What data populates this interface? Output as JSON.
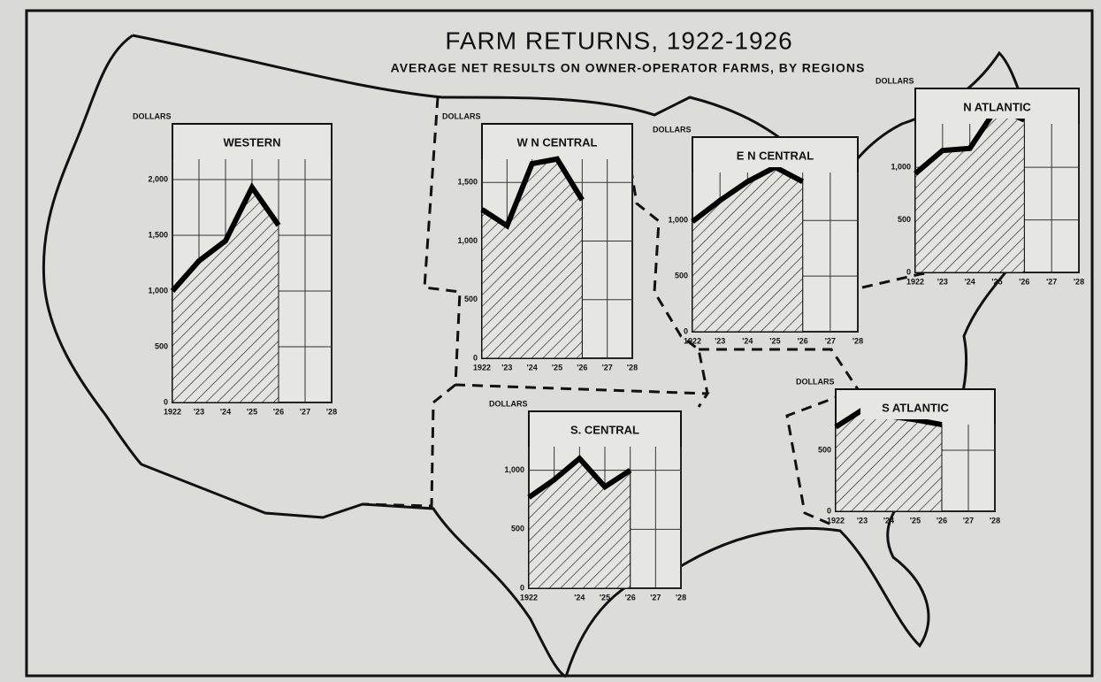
{
  "title": "FARM RETURNS, 1922-1926",
  "subtitle": "AVERAGE NET RESULTS ON OWNER-OPERATOR FARMS, BY REGIONS",
  "chart_data": [
    {
      "type": "area",
      "title": "WESTERN",
      "ylabel": "DOLLARS",
      "categories": [
        "1922",
        "'23",
        "'24",
        "'25",
        "'26",
        "'27",
        "'28"
      ],
      "values": [
        1000,
        1270,
        1450,
        1930,
        1590,
        null,
        null
      ],
      "ylim": [
        0,
        2500
      ],
      "yticks": [
        0,
        500,
        {
          "value": 1000,
          "label": "1,000"
        },
        {
          "value": 1500,
          "label": "1,500"
        },
        {
          "value": 2000,
          "label": "2,000"
        }
      ]
    },
    {
      "type": "area",
      "title": "W N CENTRAL",
      "ylabel": "DOLLARS",
      "categories": [
        "1922",
        "'23",
        "'24",
        "'25",
        "'26",
        "'27",
        "'28"
      ],
      "values": [
        1270,
        1130,
        1660,
        1700,
        1350,
        null,
        null
      ],
      "ylim": [
        0,
        2000
      ],
      "yticks": [
        0,
        500,
        {
          "value": 1000,
          "label": "1,000"
        },
        {
          "value": 1500,
          "label": "1,500"
        }
      ]
    },
    {
      "type": "area",
      "title": "E N CENTRAL",
      "ylabel": "DOLLARS",
      "categories": [
        "1922",
        "'23",
        "'24",
        "'25",
        "'26",
        "'27",
        "'28"
      ],
      "values": [
        990,
        1180,
        1350,
        1480,
        1350,
        null,
        null
      ],
      "ylim": [
        0,
        1750
      ],
      "yticks": [
        0,
        500,
        {
          "value": 1000,
          "label": "1,000"
        }
      ]
    },
    {
      "type": "area",
      "title": "N ATLANTIC",
      "ylabel": "DOLLARS",
      "categories": [
        "1922",
        "'23",
        "'24",
        "'25",
        "'26",
        "'27",
        "'28"
      ],
      "values": [
        940,
        1160,
        1180,
        1570,
        1450,
        null,
        null
      ],
      "ylim": [
        0,
        1750
      ],
      "yticks": [
        0,
        500,
        {
          "value": 1000,
          "label": "1,000"
        }
      ]
    },
    {
      "type": "area",
      "title": "S. CENTRAL",
      "ylabel": "DOLLARS",
      "categories": [
        "1922",
        null,
        "'24",
        "'25",
        "'26",
        "'27",
        "'28"
      ],
      "values": [
        770,
        920,
        1100,
        860,
        1000,
        null,
        null
      ],
      "ylim": [
        0,
        1500
      ],
      "yticks": [
        0,
        500,
        {
          "value": 1000,
          "label": "1,000"
        }
      ]
    },
    {
      "type": "area",
      "title": "S ATLANTIC",
      "ylabel": "DOLLARS",
      "categories": [
        "1922",
        "'23",
        "'24",
        "'25",
        "'26",
        "'27",
        "'28"
      ],
      "values": [
        690,
        830,
        780,
        750,
        710,
        null,
        null
      ],
      "ylim": [
        0,
        1000
      ],
      "yticks": [
        0,
        500
      ]
    }
  ]
}
